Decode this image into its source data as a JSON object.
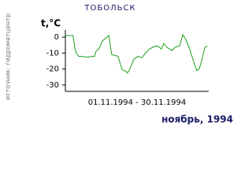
{
  "chart_data": {
    "type": "line",
    "title": "ТОБОЛЬСК",
    "ylabel": "t,°C",
    "xlabel": "01.11.1994 - 30.11.1994",
    "source": "источник: гидрометцентр",
    "subtitle": "ноябрь, 1994",
    "x": [
      1,
      2.6,
      3,
      3.3,
      3.8,
      5.5,
      7.1,
      7.4,
      8.1,
      8.7,
      10.1,
      10.7,
      12,
      12.9,
      13.7,
      14,
      14.5,
      15.3,
      16.2,
      17,
      17.8,
      18.6,
      19.5,
      20.3,
      21.1,
      21.6,
      22.3,
      23.3,
      23.9,
      24.9,
      25.6,
      26.2,
      26.9,
      27.7,
      28.5,
      29,
      29.5,
      30.2,
      30.7
    ],
    "values": [
      1,
      1,
      -7,
      -10,
      -12,
      -12.5,
      -12,
      -9,
      -7,
      -2.5,
      1,
      -11,
      -12,
      -20.5,
      -21.5,
      -22.5,
      -20,
      -14,
      -12,
      -13,
      -10,
      -7.5,
      -6,
      -5.5,
      -7.5,
      -4,
      -6.5,
      -8.5,
      -6.5,
      -5.5,
      1.5,
      -1.5,
      -6.5,
      -14,
      -21,
      -20,
      -15,
      -6.5,
      -5.5
    ],
    "color": "#1aa01a",
    "xlim": [
      1,
      31
    ],
    "ylim": [
      -34,
      4.5
    ],
    "yticks": [
      0,
      -10,
      -20,
      -30
    ]
  }
}
